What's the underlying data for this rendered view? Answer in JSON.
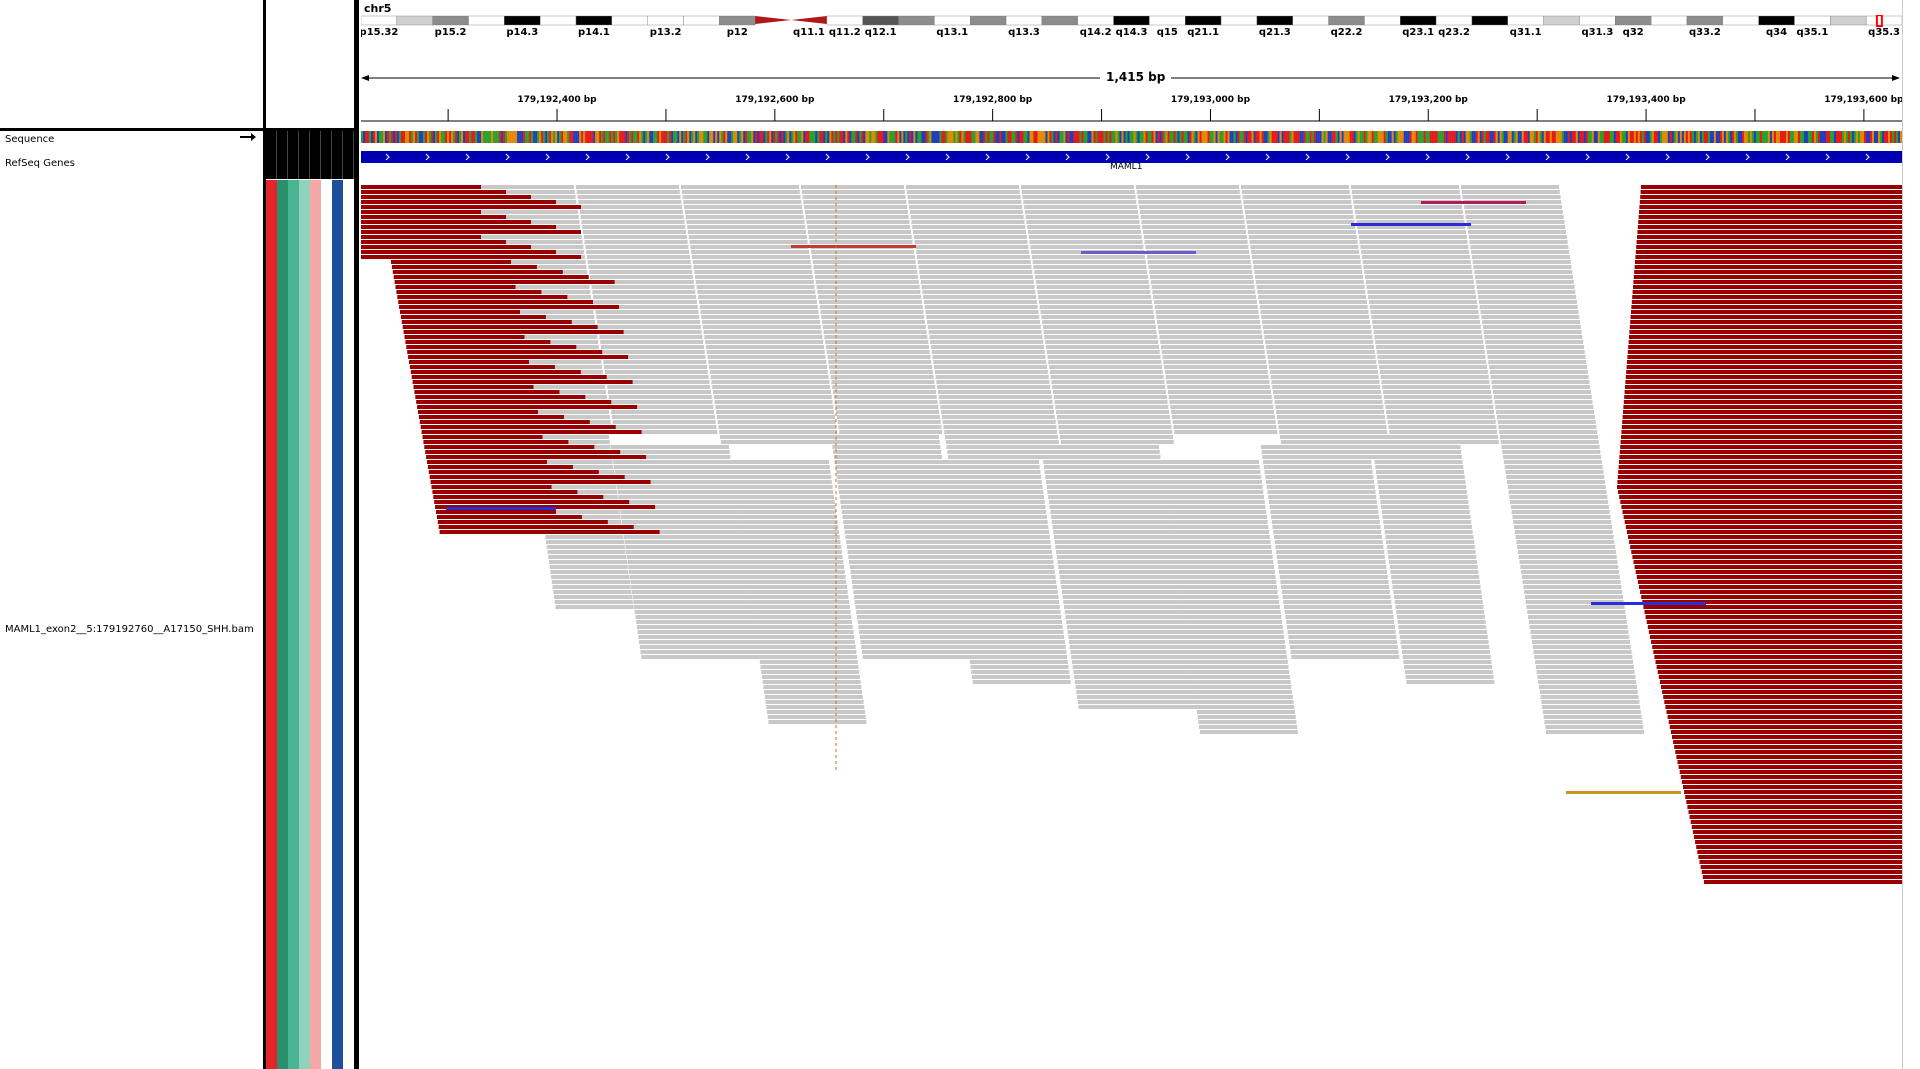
{
  "locus": {
    "chromosome": "chr5",
    "span_label": "1,415 bp",
    "start_bp": 179192220,
    "end_bp": 179193635,
    "ticks": [
      {
        "bp": 179192400,
        "label": "179,192,400 bp"
      },
      {
        "bp": 179192600,
        "label": "179,192,600 bp"
      },
      {
        "bp": 179192800,
        "label": "179,192,800 bp"
      },
      {
        "bp": 179193000,
        "label": "179,193,000 bp"
      },
      {
        "bp": 179193200,
        "label": "179,193,200 bp"
      },
      {
        "bp": 179193400,
        "label": "179,193,400 bp"
      },
      {
        "bp": 179193600,
        "label": "179,193,600 bp"
      }
    ]
  },
  "ideogram": {
    "bands": [
      {
        "name": "p15.32",
        "stain": "white",
        "label": true
      },
      {
        "name": "p15.31",
        "stain": "light",
        "label": false
      },
      {
        "name": "p15.2",
        "stain": "grey",
        "label": true
      },
      {
        "name": "p15.1",
        "stain": "white",
        "label": false
      },
      {
        "name": "p14.3",
        "stain": "black",
        "label": true
      },
      {
        "name": "p14.2",
        "stain": "white",
        "label": false
      },
      {
        "name": "p14.1",
        "stain": "black",
        "label": true
      },
      {
        "name": "p13.3",
        "stain": "white",
        "label": false
      },
      {
        "name": "p13.2",
        "stain": "white",
        "label": true
      },
      {
        "name": "p13.1",
        "stain": "white",
        "label": false
      },
      {
        "name": "p12",
        "stain": "grey",
        "label": true
      },
      {
        "name": "p11",
        "stain": "centromere-p",
        "label": false
      },
      {
        "name": "q11.1",
        "stain": "centromere-q",
        "label": true
      },
      {
        "name": "q11.2",
        "stain": "white",
        "label": true
      },
      {
        "name": "q12.1",
        "stain": "dark",
        "label": true
      },
      {
        "name": "q12.3",
        "stain": "grey",
        "label": false
      },
      {
        "name": "q13.1",
        "stain": "white",
        "label": true
      },
      {
        "name": "q13.2",
        "stain": "grey",
        "label": false
      },
      {
        "name": "q13.3",
        "stain": "white",
        "label": true
      },
      {
        "name": "q14.1",
        "stain": "grey",
        "label": false
      },
      {
        "name": "q14.2",
        "stain": "white",
        "label": true
      },
      {
        "name": "q14.3",
        "stain": "black",
        "label": true
      },
      {
        "name": "q15",
        "stain": "white",
        "label": true
      },
      {
        "name": "q21.1",
        "stain": "black",
        "label": true
      },
      {
        "name": "q21.2",
        "stain": "white",
        "label": false
      },
      {
        "name": "q21.3",
        "stain": "black",
        "label": true
      },
      {
        "name": "q22.1",
        "stain": "white",
        "label": false
      },
      {
        "name": "q22.2",
        "stain": "grey",
        "label": true
      },
      {
        "name": "q22.3",
        "stain": "white",
        "label": false
      },
      {
        "name": "q23.1",
        "stain": "black",
        "label": true
      },
      {
        "name": "q23.2",
        "stain": "white",
        "label": true
      },
      {
        "name": "q23.3",
        "stain": "black",
        "label": false
      },
      {
        "name": "q31.1",
        "stain": "white",
        "label": true
      },
      {
        "name": "q31.2",
        "stain": "light",
        "label": false
      },
      {
        "name": "q31.3",
        "stain": "white",
        "label": true
      },
      {
        "name": "q32",
        "stain": "grey",
        "label": true
      },
      {
        "name": "q33.1",
        "stain": "white",
        "label": false
      },
      {
        "name": "q33.2",
        "stain": "grey",
        "label": true
      },
      {
        "name": "q33.3",
        "stain": "white",
        "label": false
      },
      {
        "name": "q34",
        "stain": "black",
        "label": true
      },
      {
        "name": "q35.1",
        "stain": "white",
        "label": true
      },
      {
        "name": "q35.2",
        "stain": "light",
        "label": false
      },
      {
        "name": "q35.3",
        "stain": "white",
        "label": true
      }
    ],
    "current_position": 0.985
  },
  "tracks": {
    "sequence_label": "Sequence",
    "refseq_label": "RefSeq Genes",
    "gene_name": "MAML1",
    "alignment_label": "MAML1_exon2__5:179192760__A17150_SHH.bam"
  },
  "attribute_colors": [
    "#e2262b",
    "#2a8f6b",
    "#49b592",
    "#8fd3bf",
    "#f4a7a6",
    "#ffffff",
    "#1f4e9c",
    "#ffffff"
  ],
  "colors": {
    "read": "#c8c8c8",
    "soft_clip_dark_red": "#990000",
    "gene_blue": "#0000b3",
    "insertion_blue": "#2b2bd8",
    "deletion_red": "#c33b2f",
    "deletion_purple": "#6a5acd",
    "deletion_gold": "#c8961e",
    "deletion_magenta": "#b01e5a"
  }
}
